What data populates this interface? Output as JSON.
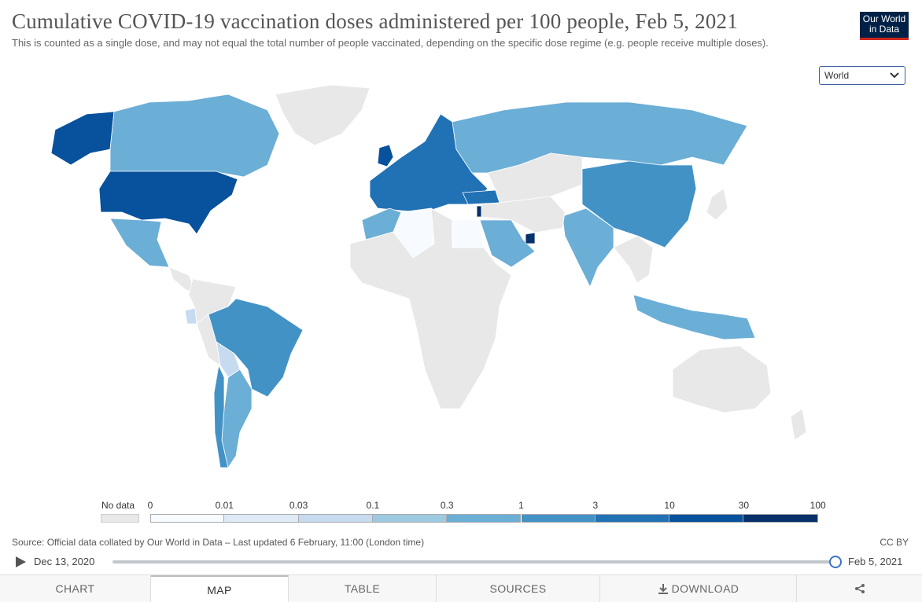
{
  "header": {
    "title": "Cumulative COVID-19 vaccination doses administered per 100 people, Feb 5, 2021",
    "subtitle": "This is counted as a single dose, and may not equal the total number of people vaccinated, depending on the specific dose regime (e.g. people receive multiple doses).",
    "logo_line1": "Our World",
    "logo_line2": "in Data",
    "region_select": "World"
  },
  "legend": {
    "nodata_label": "No data",
    "ticks": [
      "0",
      "0.01",
      "0.03",
      "0.1",
      "0.3",
      "1",
      "3",
      "10",
      "30",
      "100"
    ],
    "bin_colors": [
      "#f7fbff",
      "#deebf7",
      "#c6dbef",
      "#9ecae1",
      "#6baed6",
      "#4292c6",
      "#2171b5",
      "#08519c",
      "#08306b"
    ],
    "nodata_color": "#e8e8e8"
  },
  "map_data": {
    "type": "choropleth",
    "metric": "Cumulative COVID-19 vaccination doses administered per 100 people",
    "date": "Feb 5, 2021",
    "regions": [
      {
        "name": "United States",
        "bin": 7
      },
      {
        "name": "Canada",
        "bin": 4
      },
      {
        "name": "Alaska",
        "bin": 7
      },
      {
        "name": "Mexico",
        "bin": 4
      },
      {
        "name": "Brazil",
        "bin": 5
      },
      {
        "name": "Argentina",
        "bin": 4
      },
      {
        "name": "Chile",
        "bin": 5
      },
      {
        "name": "Bolivia",
        "bin": 2
      },
      {
        "name": "Ecuador",
        "bin": 2
      },
      {
        "name": "Europe",
        "bin": 6
      },
      {
        "name": "United Kingdom",
        "bin": 7
      },
      {
        "name": "Russia",
        "bin": 4
      },
      {
        "name": "China",
        "bin": 5
      },
      {
        "name": "India",
        "bin": 4
      },
      {
        "name": "Saudi Arabia",
        "bin": 4
      },
      {
        "name": "Israel",
        "bin": 8
      },
      {
        "name": "United Arab Emirates",
        "bin": 8
      },
      {
        "name": "Morocco",
        "bin": 4
      },
      {
        "name": "Algeria",
        "bin": 0
      },
      {
        "name": "Egypt",
        "bin": 0
      },
      {
        "name": "Indonesia",
        "bin": 4
      },
      {
        "name": "Turkey",
        "bin": 6
      },
      {
        "name": "Greenland",
        "bin": -1
      },
      {
        "name": "Africa (rest)",
        "bin": -1
      },
      {
        "name": "Australia",
        "bin": -1
      }
    ]
  },
  "footer": {
    "source": "Source: Official data collated by Our World in Data – Last updated 6 February, 11:00 (London time)",
    "license": "CC BY",
    "timeline_start": "Dec 13, 2020",
    "timeline_end": "Feb 5, 2021",
    "timeline_progress": 1.0
  },
  "tabs": [
    {
      "label": "CHART",
      "active": false
    },
    {
      "label": "MAP",
      "active": true
    },
    {
      "label": "TABLE",
      "active": false
    },
    {
      "label": "SOURCES",
      "active": false
    },
    {
      "label": "DOWNLOAD",
      "active": false
    }
  ],
  "icons": {
    "play": "play-icon",
    "download": "download-icon",
    "share": "share-icon",
    "chevron": "chevron-down-icon"
  }
}
